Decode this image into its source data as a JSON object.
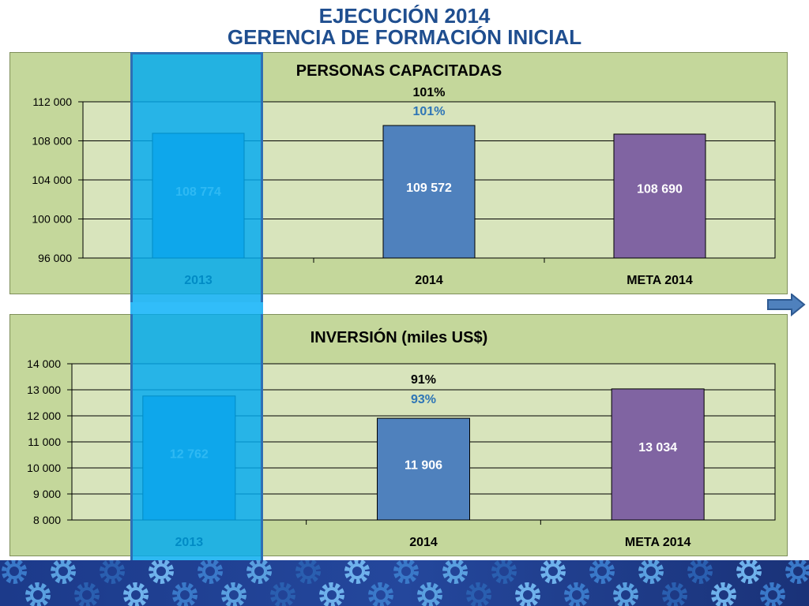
{
  "title": {
    "line1": "EJECUCIÓN 2014",
    "line2": "GERENCIA DE FORMACIÓN INICIAL"
  },
  "chart_data": [
    {
      "type": "bar",
      "title": "PERSONAS CAPACITADAS",
      "categories": [
        "2013",
        "2014",
        "META 2014"
      ],
      "values": [
        108774,
        109572,
        108690
      ],
      "value_labels": [
        "108 774",
        "109 572",
        "108 690"
      ],
      "ylim": [
        96000,
        112000
      ],
      "yticks": [
        96000,
        100000,
        104000,
        108000,
        112000
      ],
      "ytick_labels": [
        "96 000",
        "100 000",
        "104 000",
        "108 000",
        "112 000"
      ],
      "bar_colors": [
        "#4f9bd3",
        "#4f81bd",
        "#8064a2"
      ],
      "annotations": [
        {
          "text": "101%",
          "color": "#000000"
        },
        {
          "text": "101%",
          "color": "#2e75b6"
        }
      ],
      "grid": true
    },
    {
      "type": "bar",
      "title": "INVERSIÓN (miles US$)",
      "categories": [
        "2013",
        "2014",
        "META 2014"
      ],
      "values": [
        12762,
        11906,
        13034
      ],
      "value_labels": [
        "12 762",
        "11 906",
        "13 034"
      ],
      "ylim": [
        8000,
        14000
      ],
      "yticks": [
        8000,
        9000,
        10000,
        11000,
        12000,
        13000,
        14000
      ],
      "ytick_labels": [
        "8 000",
        "9 000",
        "10 000",
        "11 000",
        "12 000",
        "13 000",
        "14 000"
      ],
      "bar_colors": [
        "#4f9bd3",
        "#4f81bd",
        "#8064a2"
      ],
      "annotations": [
        {
          "text": "91%",
          "color": "#000000"
        },
        {
          "text": "93%",
          "color": "#2e75b6"
        }
      ],
      "grid": true
    }
  ],
  "colors": {
    "panel_bg": "#c4d79b",
    "plot_bg": "#d8e4bc",
    "highlight": "#00aaf0",
    "title": "#1f4e8f",
    "footer": "#24479c"
  },
  "icons": {
    "next": "arrow-right-icon",
    "footer_pattern": "gear-icon"
  }
}
